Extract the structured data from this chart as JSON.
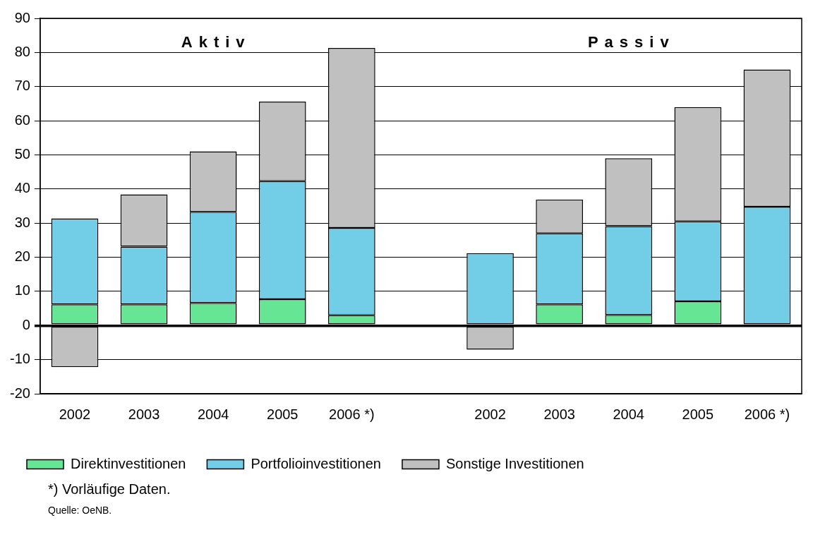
{
  "chart_data": {
    "type": "bar",
    "stacked": true,
    "categories": [
      "2002",
      "2003",
      "2004",
      "2005",
      "2006 *)",
      null,
      "2002",
      "2003",
      "2004",
      "2005",
      "2006 *)"
    ],
    "series": [
      {
        "name": "Direktinvestitionen",
        "color": "#66e695",
        "values": [
          6.2,
          6.2,
          6.6,
          7.7,
          3.0,
          null,
          null,
          6.2,
          3.1,
          7.1,
          null
        ]
      },
      {
        "name": "Portfolioinvestitionen",
        "color": "#72cee6",
        "values": [
          25.2,
          16.9,
          26.7,
          34.6,
          25.6,
          null,
          21.2,
          20.8,
          26.0,
          23.4,
          34.8
        ]
      },
      {
        "name": "Sonstige Investitionen",
        "color": "#c0c0c0",
        "values": [
          -12.2,
          15.3,
          17.7,
          23.3,
          52.7,
          null,
          -7.1,
          9.9,
          19.9,
          33.5,
          40.2
        ]
      }
    ],
    "ylim": [
      -20,
      90
    ],
    "yticks": [
      -20,
      -10,
      0,
      10,
      20,
      30,
      40,
      50,
      60,
      70,
      80,
      90
    ],
    "grid": "y",
    "legend": "bottom",
    "annotations": [
      "Aktiv",
      "Passiv",
      "*) Vorläufige Daten.",
      "Quelle: OeNB."
    ]
  }
}
